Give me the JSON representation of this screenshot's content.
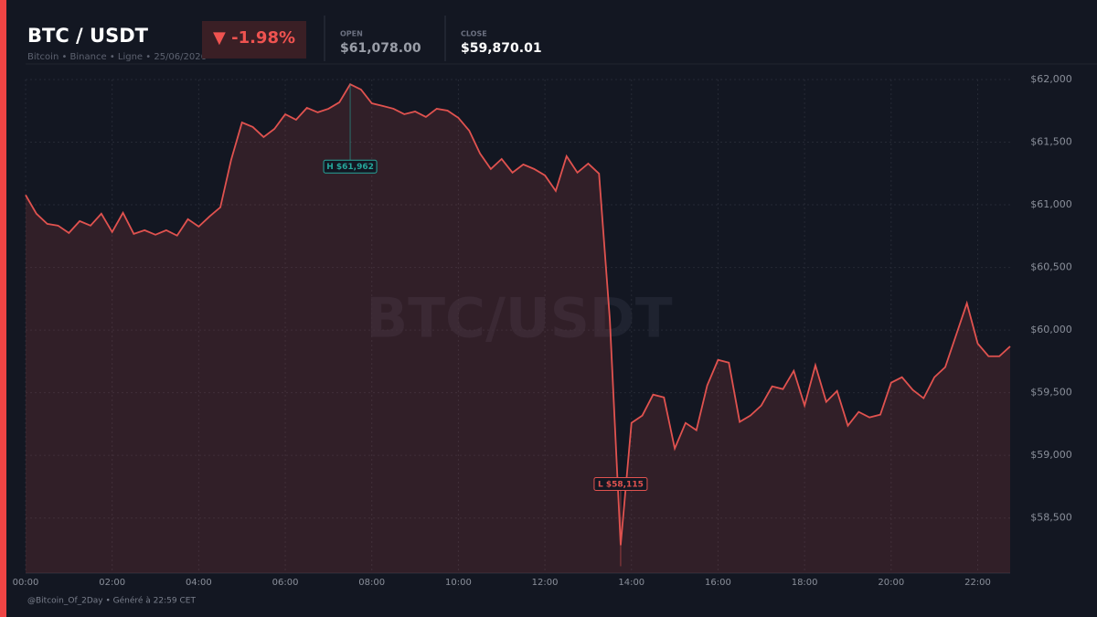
{
  "header": {
    "title": "BTC / USDT",
    "subtitle": "Bitcoin • Binance • Ligne • 25/06/2026",
    "change": "▼ -1.98%",
    "open_label": "OPEN",
    "open": "$61,078.00",
    "close_label": "CLOSE",
    "close": "$59,870.01"
  },
  "watermark": "BTC/USDT",
  "footer": "@Bitcoin_Of_2Day • Généré à 22:59 CET",
  "chart_data": {
    "type": "line",
    "area": true,
    "color": "#e0524f",
    "grid": true,
    "x": [
      "00:00",
      "00:15",
      "00:30",
      "00:45",
      "01:00",
      "01:15",
      "01:30",
      "01:45",
      "02:00",
      "02:15",
      "02:30",
      "02:45",
      "03:00",
      "03:15",
      "03:30",
      "03:45",
      "04:00",
      "04:15",
      "04:30",
      "04:45",
      "05:00",
      "05:15",
      "05:30",
      "05:45",
      "06:00",
      "06:15",
      "06:30",
      "06:45",
      "07:00",
      "07:15",
      "07:30",
      "07:45",
      "08:00",
      "08:15",
      "08:30",
      "08:45",
      "09:00",
      "09:15",
      "09:30",
      "09:45",
      "10:00",
      "10:15",
      "10:30",
      "10:45",
      "11:00",
      "11:15",
      "11:30",
      "11:45",
      "12:00",
      "12:15",
      "12:30",
      "12:45",
      "13:00",
      "13:15",
      "13:30",
      "13:45",
      "14:00",
      "14:15",
      "14:30",
      "14:45",
      "15:00",
      "15:15",
      "15:30",
      "15:45",
      "16:00",
      "16:15",
      "16:30",
      "16:45",
      "17:00",
      "17:15",
      "17:30",
      "17:45",
      "18:00",
      "18:15",
      "18:30",
      "18:45",
      "19:00",
      "19:15",
      "19:30",
      "19:45",
      "20:00",
      "20:15",
      "20:30",
      "20:45",
      "21:00",
      "21:15",
      "21:30",
      "21:45",
      "22:00",
      "22:15",
      "22:30",
      "22:45"
    ],
    "values": [
      61078,
      60929,
      60848,
      60834,
      60775,
      60870,
      60834,
      60929,
      60783,
      60936,
      60768,
      60797,
      60761,
      60797,
      60754,
      60885,
      60826,
      60907,
      60980,
      61359,
      61657,
      61621,
      61541,
      61606,
      61723,
      61679,
      61774,
      61738,
      61767,
      61818,
      61962,
      61920,
      61810,
      61789,
      61767,
      61723,
      61745,
      61701,
      61767,
      61752,
      61694,
      61592,
      61410,
      61286,
      61366,
      61257,
      61322,
      61286,
      61235,
      61111,
      61388,
      61257,
      61329,
      61249,
      60083,
      58283,
      59259,
      59318,
      59485,
      59463,
      59055,
      59259,
      59201,
      59558,
      59762,
      59740,
      59267,
      59318,
      59398,
      59551,
      59529,
      59675,
      59398,
      59719,
      59427,
      59514,
      59237,
      59347,
      59303,
      59325,
      59580,
      59624,
      59522,
      59456,
      59624,
      59704,
      59959,
      60214,
      59893,
      59791,
      59791,
      59870.01
    ],
    "xlim": [
      "00:00",
      "22:45"
    ],
    "xticks": [
      "00:00",
      "02:00",
      "04:00",
      "06:00",
      "08:00",
      "10:00",
      "12:00",
      "14:00",
      "16:00",
      "18:00",
      "20:00",
      "22:00"
    ],
    "ylim": [
      58060,
      62000
    ],
    "yticks": [
      {
        "value": 58500,
        "label": "$58,500"
      },
      {
        "value": 59000,
        "label": "$59,000"
      },
      {
        "value": 59500,
        "label": "$59,500"
      },
      {
        "value": 60000,
        "label": "$60,000"
      },
      {
        "value": 60500,
        "label": "$60,500"
      },
      {
        "value": 61000,
        "label": "$61,000"
      },
      {
        "value": 61500,
        "label": "$61,500"
      },
      {
        "value": 62000,
        "label": "$62,000"
      }
    ],
    "annotations": [
      {
        "x": "07:30",
        "value": 61962,
        "label": "H $61,962",
        "color": "#26a69a"
      },
      {
        "x": "13:45",
        "value": 58115,
        "label": "L $58,115",
        "color": "#e0524f"
      }
    ]
  }
}
